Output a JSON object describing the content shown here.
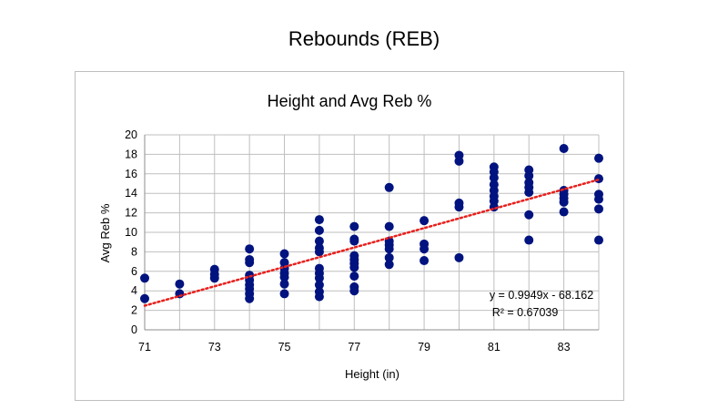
{
  "slide": {
    "title": "Rebounds (REB)"
  },
  "chart_data": {
    "type": "scatter",
    "title": "Height and Avg Reb %",
    "xlabel": "Height (in)",
    "ylabel": "Avg Reb %",
    "xlim": [
      71,
      84
    ],
    "ylim": [
      0,
      20
    ],
    "x_ticks": [
      71,
      73,
      75,
      77,
      79,
      81,
      83
    ],
    "y_ticks": [
      0,
      2,
      4,
      6,
      8,
      10,
      12,
      14,
      16,
      18,
      20
    ],
    "grid": true,
    "marker_color": "#00137f",
    "trendline": {
      "type": "linear",
      "slope": 0.9949,
      "intercept": -68.162,
      "color": "#e8201c",
      "style": "dotted",
      "equation_label": "y = 0.9949x - 68.162",
      "r2_label": "R² = 0.67039"
    },
    "points": [
      [
        71,
        5.3
      ],
      [
        71,
        3.2
      ],
      [
        72,
        4.7
      ],
      [
        72,
        3.7
      ],
      [
        73,
        6.2
      ],
      [
        73,
        5.7
      ],
      [
        73,
        5.3
      ],
      [
        74,
        8.3
      ],
      [
        74,
        7.2
      ],
      [
        74,
        6.9
      ],
      [
        74,
        5.6
      ],
      [
        74,
        5.1
      ],
      [
        74,
        4.6
      ],
      [
        74,
        4.2
      ],
      [
        74,
        3.7
      ],
      [
        74,
        3.2
      ],
      [
        75,
        7.8
      ],
      [
        75,
        6.9
      ],
      [
        75,
        6.3
      ],
      [
        75,
        5.8
      ],
      [
        75,
        5.4
      ],
      [
        75,
        4.7
      ],
      [
        75,
        3.7
      ],
      [
        76,
        11.3
      ],
      [
        76,
        10.2
      ],
      [
        76,
        9.1
      ],
      [
        76,
        8.4
      ],
      [
        76,
        8.0
      ],
      [
        76,
        6.3
      ],
      [
        76,
        5.8
      ],
      [
        76,
        5.3
      ],
      [
        76,
        4.6
      ],
      [
        76,
        3.9
      ],
      [
        76,
        3.4
      ],
      [
        77,
        10.6
      ],
      [
        77,
        9.3
      ],
      [
        77,
        9.1
      ],
      [
        77,
        7.6
      ],
      [
        77,
        7.2
      ],
      [
        77,
        6.8
      ],
      [
        77,
        6.4
      ],
      [
        77,
        5.5
      ],
      [
        77,
        4.4
      ],
      [
        77,
        4.0
      ],
      [
        78,
        14.6
      ],
      [
        78,
        10.6
      ],
      [
        78,
        9.1
      ],
      [
        78,
        8.7
      ],
      [
        78,
        8.3
      ],
      [
        78,
        7.4
      ],
      [
        78,
        6.7
      ],
      [
        79,
        11.2
      ],
      [
        79,
        8.8
      ],
      [
        79,
        8.3
      ],
      [
        79,
        7.1
      ],
      [
        80,
        17.9
      ],
      [
        80,
        17.3
      ],
      [
        80,
        13.0
      ],
      [
        80,
        12.6
      ],
      [
        80,
        7.4
      ],
      [
        81,
        16.7
      ],
      [
        81,
        16.2
      ],
      [
        81,
        15.6
      ],
      [
        81,
        14.9
      ],
      [
        81,
        14.3
      ],
      [
        81,
        13.7
      ],
      [
        81,
        13.2
      ],
      [
        81,
        12.6
      ],
      [
        82,
        16.4
      ],
      [
        82,
        15.8
      ],
      [
        82,
        15.1
      ],
      [
        82,
        14.6
      ],
      [
        82,
        14.1
      ],
      [
        82,
        11.8
      ],
      [
        82,
        9.2
      ],
      [
        83,
        18.6
      ],
      [
        83,
        14.3
      ],
      [
        83,
        13.9
      ],
      [
        83,
        13.5
      ],
      [
        83,
        13.1
      ],
      [
        83,
        12.1
      ],
      [
        84,
        17.6
      ],
      [
        84,
        15.5
      ],
      [
        84,
        13.9
      ],
      [
        84,
        13.4
      ],
      [
        84,
        12.4
      ],
      [
        84,
        9.2
      ]
    ]
  }
}
